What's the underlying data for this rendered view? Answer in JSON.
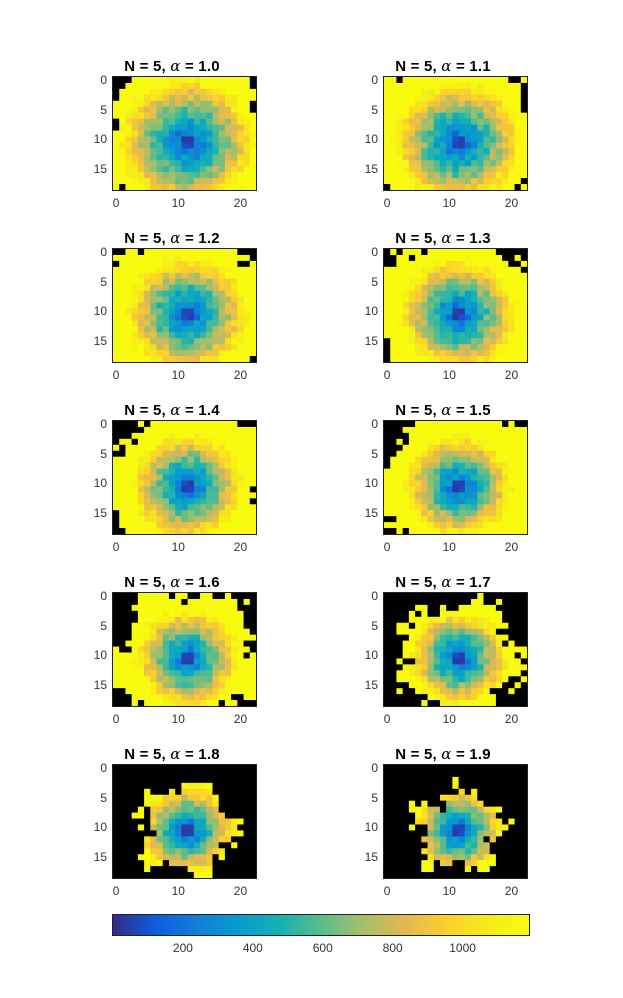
{
  "chart_data": {
    "type": "heatmap",
    "colormap": "parula",
    "clim": [
      0,
      1190
    ],
    "grid_size": [
      19,
      23
    ],
    "xlim": [
      -0.5,
      22.5
    ],
    "ylim": [
      -0.5,
      18.5
    ],
    "xticks": [
      "0",
      "10",
      "20"
    ],
    "yticks": [
      "0",
      "5",
      "10",
      "15"
    ],
    "xtick_values": [
      0,
      10,
      20
    ],
    "ytick_values": [
      0,
      5,
      10,
      15
    ],
    "center": [
      11.5,
      10.5
    ],
    "colorbar": {
      "ticks": [
        "200",
        "400",
        "600",
        "800",
        "1000"
      ],
      "tick_values": [
        200,
        400,
        600,
        800,
        1000
      ],
      "orientation": "horizontal"
    },
    "panels": [
      {
        "title_prefix": "N = 5, ",
        "alpha_symbol": "α",
        "title_suffix": " = 1.0",
        "alpha": 1.0,
        "mask_radius": 14
      },
      {
        "title_prefix": "N = 5, ",
        "alpha_symbol": "α",
        "title_suffix": " = 1.1",
        "alpha": 1.1,
        "mask_radius": 14
      },
      {
        "title_prefix": "N = 5, ",
        "alpha_symbol": "α",
        "title_suffix": " = 1.2",
        "alpha": 1.2,
        "mask_radius": 14
      },
      {
        "title_prefix": "N = 5, ",
        "alpha_symbol": "α",
        "title_suffix": " = 1.3",
        "alpha": 1.3,
        "mask_radius": 14
      },
      {
        "title_prefix": "N = 5, ",
        "alpha_symbol": "α",
        "title_suffix": " = 1.4",
        "alpha": 1.4,
        "mask_radius": 13
      },
      {
        "title_prefix": "N = 5, ",
        "alpha_symbol": "α",
        "title_suffix": " = 1.5",
        "alpha": 1.5,
        "mask_radius": 13
      },
      {
        "title_prefix": "N = 5, ",
        "alpha_symbol": "α",
        "title_suffix": " = 1.6",
        "alpha": 1.6,
        "mask_radius": 11.5
      },
      {
        "title_prefix": "N = 5, ",
        "alpha_symbol": "α",
        "title_suffix": " = 1.7",
        "alpha": 1.7,
        "mask_radius": 9.5
      },
      {
        "title_prefix": "N = 5, ",
        "alpha_symbol": "α",
        "title_suffix": " = 1.8",
        "alpha": 1.8,
        "mask_radius": 7.5
      },
      {
        "title_prefix": "N = 5, ",
        "alpha_symbol": "α",
        "title_suffix": " = 1.9",
        "alpha": 1.9,
        "mask_radius": 6.5
      }
    ]
  }
}
